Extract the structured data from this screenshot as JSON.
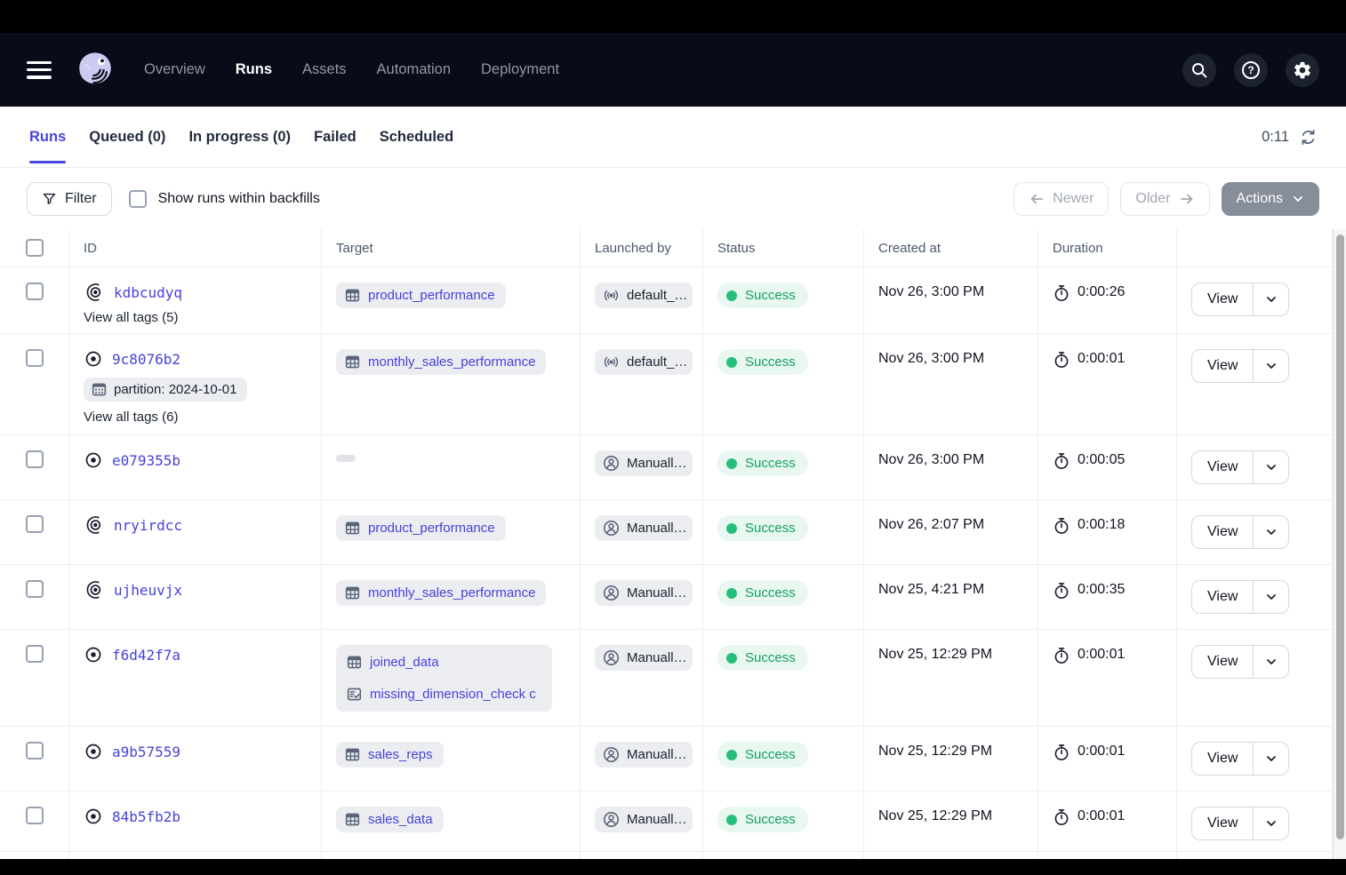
{
  "nav": {
    "brand_icon": "dagster-octopus-logo",
    "items": [
      {
        "label": "Overview"
      },
      {
        "label": "Runs"
      },
      {
        "label": "Assets"
      },
      {
        "label": "Automation"
      },
      {
        "label": "Deployment"
      }
    ],
    "active_item": "Runs",
    "right_icons": [
      "search-icon",
      "help-icon",
      "gear-icon"
    ]
  },
  "tabs": {
    "items": [
      {
        "label": "Runs"
      },
      {
        "label": "Queued (0)"
      },
      {
        "label": "In progress (0)"
      },
      {
        "label": "Failed"
      },
      {
        "label": "Scheduled"
      }
    ],
    "active_tab": "Runs",
    "refresh_timer": "0:11"
  },
  "toolbar": {
    "filter_label": "Filter",
    "backfills_label": "Show runs within backfills",
    "backfills_checked": false,
    "newer_label": "Newer",
    "older_label": "Older",
    "actions_label": "Actions"
  },
  "table": {
    "columns": [
      "ID",
      "Target",
      "Launched by",
      "Status",
      "Created at",
      "Duration"
    ],
    "rows": [
      {
        "id": "kdbcudyq",
        "id_icon": "run-target-open-icon",
        "view_all_tags": "View all tags (5)",
        "targets": [
          {
            "icon": "table-icon",
            "label": "product_performance"
          }
        ],
        "launched_by": {
          "icon": "sensor-icon",
          "label": "default_…"
        },
        "status": "Success",
        "created_at": "Nov 26, 3:00 PM",
        "duration": "0:00:26",
        "view_label": "View"
      },
      {
        "id": "9c8076b2",
        "id_icon": "run-target-icon",
        "tag": {
          "icon": "partition-icon",
          "label": "partition: 2024-10-01"
        },
        "view_all_tags": "View all tags (6)",
        "targets": [
          {
            "icon": "table-icon",
            "label": "monthly_sales_performance"
          }
        ],
        "launched_by": {
          "icon": "sensor-icon",
          "label": "default_…"
        },
        "status": "Success",
        "created_at": "Nov 26, 3:00 PM",
        "duration": "0:00:01",
        "view_label": "View"
      },
      {
        "id": "e079355b",
        "id_icon": "run-target-icon",
        "targets_placeholder": true,
        "launched_by": {
          "icon": "person-icon",
          "label": "Manuall…"
        },
        "status": "Success",
        "created_at": "Nov 26, 3:00 PM",
        "duration": "0:00:05",
        "view_label": "View"
      },
      {
        "id": "nryirdcc",
        "id_icon": "run-target-open-icon",
        "targets": [
          {
            "icon": "table-icon",
            "label": "product_performance"
          }
        ],
        "launched_by": {
          "icon": "person-icon",
          "label": "Manuall…"
        },
        "status": "Success",
        "created_at": "Nov 26, 2:07 PM",
        "duration": "0:00:18",
        "view_label": "View"
      },
      {
        "id": "ujheuvjx",
        "id_icon": "run-target-open-icon",
        "targets": [
          {
            "icon": "table-icon",
            "label": "monthly_sales_performance"
          }
        ],
        "launched_by": {
          "icon": "person-icon",
          "label": "Manuall…"
        },
        "status": "Success",
        "created_at": "Nov 25, 4:21 PM",
        "duration": "0:00:35",
        "view_label": "View"
      },
      {
        "id": "f6d42f7a",
        "id_icon": "run-target-icon",
        "target_group": [
          {
            "icon": "table-icon",
            "label": "joined_data"
          },
          {
            "icon": "check-doc-icon",
            "label": "missing_dimension_check c"
          }
        ],
        "launched_by": {
          "icon": "person-icon",
          "label": "Manuall…"
        },
        "status": "Success",
        "created_at": "Nov 25, 12:29 PM",
        "duration": "0:00:01",
        "view_label": "View"
      },
      {
        "id": "a9b57559",
        "id_icon": "run-target-icon",
        "targets": [
          {
            "icon": "table-icon",
            "label": "sales_reps"
          }
        ],
        "launched_by": {
          "icon": "person-icon",
          "label": "Manuall…"
        },
        "status": "Success",
        "created_at": "Nov 25, 12:29 PM",
        "duration": "0:00:01",
        "view_label": "View"
      },
      {
        "id": "84b5fb2b",
        "id_icon": "run-target-icon",
        "targets": [
          {
            "icon": "table-icon",
            "label": "sales_data"
          }
        ],
        "launched_by": {
          "icon": "person-icon",
          "label": "Manuall…"
        },
        "status": "Success",
        "created_at": "Nov 25, 12:29 PM",
        "duration": "0:00:01",
        "view_label": "View"
      }
    ]
  },
  "colors": {
    "accent": "#4744E0",
    "nav_bg": "#080B18",
    "success_text": "#169E60",
    "success_dot": "#27BE7D",
    "chip_bg": "#ECEDF1"
  }
}
